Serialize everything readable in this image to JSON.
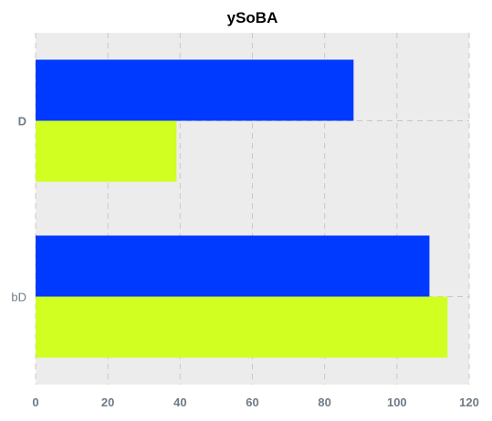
{
  "chart_data": {
    "type": "bar",
    "orientation": "horizontal",
    "title": "ySoBA",
    "categories": [
      "D",
      "bD"
    ],
    "series": [
      {
        "values": [
          88,
          109
        ],
        "color": "#0039ff"
      },
      {
        "values": [
          39,
          114
        ],
        "color": "#d0ff21"
      }
    ],
    "xlim": [
      0,
      120
    ],
    "xticks": [
      0,
      20,
      40,
      60,
      80,
      100,
      120
    ],
    "xlabel": "",
    "ylabel": "",
    "grid": true,
    "background": "#ececec"
  }
}
